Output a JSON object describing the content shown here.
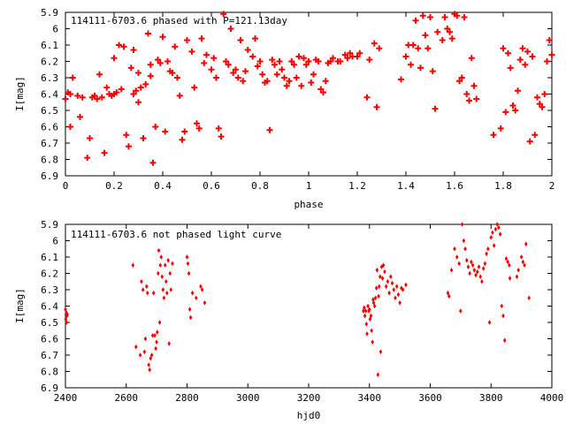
{
  "chart_data": [
    {
      "type": "scatter",
      "title": "114111-6703.6 phased with P=121.13day",
      "xlabel": "phase",
      "ylabel": "I[mag]",
      "xlim": [
        0,
        2
      ],
      "ylim": [
        5.9,
        6.9
      ],
      "y_inverted": true,
      "grid": false,
      "marker": "plus",
      "color": "#ff0000",
      "x_ticks": [
        "0",
        "0.2",
        "0.4",
        "0.6",
        "0.8",
        "1",
        "1.2",
        "1.4",
        "1.6",
        "1.8",
        "2"
      ],
      "y_ticks": [
        "5.9",
        "6",
        "6.1",
        "6.2",
        "6.3",
        "6.4",
        "6.5",
        "6.6",
        "6.7",
        "6.8",
        "6.9"
      ],
      "points": [
        [
          0.0,
          6.43
        ],
        [
          0.01,
          6.39
        ],
        [
          0.02,
          6.6
        ],
        [
          0.02,
          6.4
        ],
        [
          0.03,
          6.3
        ],
        [
          0.05,
          6.41
        ],
        [
          0.06,
          6.54
        ],
        [
          0.07,
          6.42
        ],
        [
          0.09,
          6.79
        ],
        [
          0.1,
          6.67
        ],
        [
          0.11,
          6.42
        ],
        [
          0.12,
          6.41
        ],
        [
          0.13,
          6.43
        ],
        [
          0.14,
          6.28
        ],
        [
          0.15,
          6.42
        ],
        [
          0.16,
          6.76
        ],
        [
          0.17,
          6.36
        ],
        [
          0.18,
          6.4
        ],
        [
          0.19,
          6.41
        ],
        [
          0.2,
          6.4
        ],
        [
          0.2,
          6.18
        ],
        [
          0.21,
          6.39
        ],
        [
          0.22,
          6.1
        ],
        [
          0.23,
          6.37
        ],
        [
          0.24,
          6.11
        ],
        [
          0.25,
          6.65
        ],
        [
          0.26,
          6.72
        ],
        [
          0.27,
          6.24
        ],
        [
          0.28,
          6.13
        ],
        [
          0.28,
          6.4
        ],
        [
          0.29,
          6.38
        ],
        [
          0.3,
          6.45
        ],
        [
          0.3,
          6.27
        ],
        [
          0.31,
          6.36
        ],
        [
          0.32,
          6.67
        ],
        [
          0.33,
          6.34
        ],
        [
          0.34,
          6.03
        ],
        [
          0.35,
          6.29
        ],
        [
          0.35,
          6.22
        ],
        [
          0.36,
          6.82
        ],
        [
          0.37,
          6.6
        ],
        [
          0.38,
          6.19
        ],
        [
          0.39,
          6.21
        ],
        [
          0.4,
          6.05
        ],
        [
          0.41,
          6.63
        ],
        [
          0.42,
          6.2
        ],
        [
          0.43,
          6.26
        ],
        [
          0.44,
          6.27
        ],
        [
          0.45,
          6.11
        ],
        [
          0.46,
          6.3
        ],
        [
          0.47,
          6.41
        ],
        [
          0.48,
          6.68
        ],
        [
          0.49,
          6.63
        ],
        [
          0.5,
          6.07
        ],
        [
          0.52,
          6.14
        ],
        [
          0.53,
          6.36
        ],
        [
          0.54,
          6.58
        ],
        [
          0.55,
          6.61
        ],
        [
          0.56,
          6.06
        ],
        [
          0.57,
          6.21
        ],
        [
          0.58,
          6.16
        ],
        [
          0.6,
          6.25
        ],
        [
          0.61,
          6.18
        ],
        [
          0.62,
          6.3
        ],
        [
          0.63,
          6.61
        ],
        [
          0.64,
          6.66
        ],
        [
          0.65,
          5.91
        ],
        [
          0.66,
          6.2
        ],
        [
          0.67,
          6.22
        ],
        [
          0.68,
          6.0
        ],
        [
          0.69,
          6.27
        ],
        [
          0.7,
          6.25
        ],
        [
          0.71,
          6.3
        ],
        [
          0.72,
          6.07
        ],
        [
          0.73,
          6.32
        ],
        [
          0.74,
          6.26
        ],
        [
          0.75,
          6.13
        ],
        [
          0.77,
          6.17
        ],
        [
          0.78,
          6.06
        ],
        [
          0.79,
          6.23
        ],
        [
          0.8,
          6.2
        ],
        [
          0.81,
          6.28
        ],
        [
          0.82,
          6.33
        ],
        [
          0.83,
          6.32
        ],
        [
          0.84,
          6.62
        ],
        [
          0.85,
          6.19
        ],
        [
          0.86,
          6.22
        ],
        [
          0.87,
          6.28
        ],
        [
          0.88,
          6.2
        ],
        [
          0.89,
          6.25
        ],
        [
          0.9,
          6.3
        ],
        [
          0.91,
          6.35
        ],
        [
          0.92,
          6.32
        ],
        [
          0.93,
          6.2
        ],
        [
          0.94,
          6.22
        ],
        [
          0.95,
          6.3
        ],
        [
          0.96,
          6.17
        ],
        [
          0.97,
          6.35
        ],
        [
          0.98,
          6.18
        ],
        [
          0.99,
          6.22
        ],
        [
          1.0,
          6.2
        ],
        [
          1.01,
          6.33
        ],
        [
          1.02,
          6.28
        ],
        [
          1.03,
          6.19
        ],
        [
          1.04,
          6.2
        ],
        [
          1.05,
          6.37
        ],
        [
          1.06,
          6.39
        ],
        [
          1.07,
          6.32
        ],
        [
          1.08,
          6.21
        ],
        [
          1.09,
          6.2
        ],
        [
          1.1,
          6.18
        ],
        [
          1.12,
          6.2
        ],
        [
          1.13,
          6.2
        ],
        [
          1.15,
          6.16
        ],
        [
          1.16,
          6.18
        ],
        [
          1.17,
          6.15
        ],
        [
          1.18,
          6.17
        ],
        [
          1.2,
          6.17
        ],
        [
          1.21,
          6.15
        ],
        [
          1.24,
          6.42
        ],
        [
          1.25,
          6.19
        ],
        [
          1.27,
          6.09
        ],
        [
          1.28,
          6.48
        ],
        [
          1.29,
          6.12
        ],
        [
          1.38,
          6.31
        ],
        [
          1.4,
          6.17
        ],
        [
          1.41,
          6.1
        ],
        [
          1.42,
          6.22
        ],
        [
          1.43,
          6.1
        ],
        [
          1.44,
          5.95
        ],
        [
          1.45,
          6.12
        ],
        [
          1.46,
          6.24
        ],
        [
          1.47,
          5.92
        ],
        [
          1.48,
          6.04
        ],
        [
          1.49,
          6.12
        ],
        [
          1.5,
          5.93
        ],
        [
          1.51,
          6.26
        ],
        [
          1.52,
          6.49
        ],
        [
          1.53,
          6.02
        ],
        [
          1.55,
          6.07
        ],
        [
          1.56,
          5.93
        ],
        [
          1.57,
          6.0
        ],
        [
          1.58,
          6.02
        ],
        [
          1.59,
          6.06
        ],
        [
          1.6,
          5.91
        ],
        [
          1.61,
          5.92
        ],
        [
          1.62,
          6.32
        ],
        [
          1.63,
          6.3
        ],
        [
          1.64,
          5.93
        ],
        [
          1.65,
          6.4
        ],
        [
          1.66,
          6.44
        ],
        [
          1.67,
          6.18
        ],
        [
          1.68,
          6.35
        ],
        [
          1.69,
          6.43
        ],
        [
          1.76,
          6.65
        ],
        [
          1.79,
          6.61
        ],
        [
          1.8,
          6.12
        ],
        [
          1.81,
          6.51
        ],
        [
          1.82,
          6.15
        ],
        [
          1.83,
          6.24
        ],
        [
          1.84,
          6.47
        ],
        [
          1.85,
          6.5
        ],
        [
          1.86,
          6.38
        ],
        [
          1.87,
          6.19
        ],
        [
          1.88,
          6.12
        ],
        [
          1.89,
          6.22
        ],
        [
          1.9,
          6.14
        ],
        [
          1.91,
          6.69
        ],
        [
          1.92,
          6.17
        ],
        [
          1.93,
          6.65
        ],
        [
          1.94,
          6.42
        ],
        [
          1.95,
          6.46
        ],
        [
          1.96,
          6.48
        ],
        [
          1.97,
          6.4
        ],
        [
          1.98,
          6.2
        ],
        [
          1.99,
          6.07
        ],
        [
          2.0,
          6.16
        ]
      ]
    },
    {
      "type": "scatter",
      "title": "114111-6703.6 not phased light curve",
      "xlabel": "hjd0",
      "ylabel": "I[mag]",
      "xlim": [
        2400,
        4000
      ],
      "ylim": [
        5.9,
        6.9
      ],
      "y_inverted": true,
      "grid": false,
      "marker": "diamond",
      "color": "#ff0000",
      "x_ticks": [
        "2400",
        "2600",
        "2800",
        "3000",
        "3200",
        "3400",
        "3600",
        "3800",
        "4000"
      ],
      "y_ticks": [
        "5.9",
        "6",
        "6.1",
        "6.2",
        "6.3",
        "6.4",
        "6.5",
        "6.6",
        "6.7",
        "6.8",
        "6.9"
      ],
      "points": [
        [
          2400,
          6.42
        ],
        [
          2401,
          6.48
        ],
        [
          2403,
          6.44
        ],
        [
          2404,
          6.5
        ],
        [
          2405,
          6.46
        ],
        [
          2406,
          6.45
        ],
        [
          2622,
          6.15
        ],
        [
          2632,
          6.65
        ],
        [
          2646,
          6.7
        ],
        [
          2650,
          6.25
        ],
        [
          2655,
          6.3
        ],
        [
          2660,
          6.68
        ],
        [
          2663,
          6.6
        ],
        [
          2667,
          6.28
        ],
        [
          2670,
          6.32
        ],
        [
          2674,
          6.76
        ],
        [
          2677,
          6.79
        ],
        [
          2680,
          6.72
        ],
        [
          2684,
          6.7
        ],
        [
          2687,
          6.58
        ],
        [
          2690,
          6.32
        ],
        [
          2694,
          6.58
        ],
        [
          2697,
          6.66
        ],
        [
          2700,
          6.62
        ],
        [
          2702,
          6.56
        ],
        [
          2705,
          6.2
        ],
        [
          2707,
          6.06
        ],
        [
          2710,
          6.5
        ],
        [
          2712,
          6.15
        ],
        [
          2715,
          6.1
        ],
        [
          2718,
          6.22
        ],
        [
          2721,
          6.3
        ],
        [
          2724,
          6.35
        ],
        [
          2728,
          6.15
        ],
        [
          2731,
          6.25
        ],
        [
          2734,
          6.32
        ],
        [
          2738,
          6.12
        ],
        [
          2741,
          6.63
        ],
        [
          2744,
          6.2
        ],
        [
          2747,
          6.3
        ],
        [
          2752,
          6.14
        ],
        [
          2800,
          6.1
        ],
        [
          2803,
          6.14
        ],
        [
          2806,
          6.2
        ],
        [
          2809,
          6.42
        ],
        [
          2812,
          6.47
        ],
        [
          2818,
          6.32
        ],
        [
          2830,
          6.35
        ],
        [
          2845,
          6.28
        ],
        [
          2850,
          6.3
        ],
        [
          2858,
          6.38
        ],
        [
          3380,
          6.43
        ],
        [
          3383,
          6.41
        ],
        [
          3385,
          6.46
        ],
        [
          3388,
          6.43
        ],
        [
          3390,
          6.51
        ],
        [
          3392,
          6.57
        ],
        [
          3395,
          6.4
        ],
        [
          3398,
          6.43
        ],
        [
          3400,
          6.42
        ],
        [
          3402,
          6.48
        ],
        [
          3405,
          6.46
        ],
        [
          3407,
          6.55
        ],
        [
          3410,
          6.62
        ],
        [
          3412,
          6.36
        ],
        [
          3414,
          6.38
        ],
        [
          3417,
          6.4
        ],
        [
          3420,
          6.35
        ],
        [
          3423,
          6.29
        ],
        [
          3425,
          6.18
        ],
        [
          3428,
          6.82
        ],
        [
          3430,
          6.34
        ],
        [
          3432,
          6.28
        ],
        [
          3435,
          6.22
        ],
        [
          3437,
          6.68
        ],
        [
          3440,
          6.16
        ],
        [
          3443,
          6.23
        ],
        [
          3446,
          6.15
        ],
        [
          3450,
          6.19
        ],
        [
          3455,
          6.28
        ],
        [
          3460,
          6.25
        ],
        [
          3465,
          6.32
        ],
        [
          3470,
          6.22
        ],
        [
          3475,
          6.26
        ],
        [
          3480,
          6.3
        ],
        [
          3485,
          6.35
        ],
        [
          3490,
          6.28
        ],
        [
          3495,
          6.33
        ],
        [
          3500,
          6.38
        ],
        [
          3505,
          6.29
        ],
        [
          3510,
          6.3
        ],
        [
          3520,
          6.27
        ],
        [
          3658,
          6.32
        ],
        [
          3662,
          6.34
        ],
        [
          3670,
          6.18
        ],
        [
          3680,
          6.05
        ],
        [
          3688,
          6.1
        ],
        [
          3695,
          6.14
        ],
        [
          3700,
          6.43
        ],
        [
          3705,
          5.9
        ],
        [
          3710,
          6.0
        ],
        [
          3715,
          6.05
        ],
        [
          3720,
          6.12
        ],
        [
          3725,
          6.16
        ],
        [
          3730,
          6.2
        ],
        [
          3735,
          6.13
        ],
        [
          3740,
          6.15
        ],
        [
          3745,
          6.18
        ],
        [
          3750,
          6.21
        ],
        [
          3755,
          6.19
        ],
        [
          3760,
          6.16
        ],
        [
          3765,
          6.22
        ],
        [
          3770,
          6.25
        ],
        [
          3775,
          6.17
        ],
        [
          3780,
          6.14
        ],
        [
          3785,
          6.08
        ],
        [
          3790,
          6.05
        ],
        [
          3795,
          6.5
        ],
        [
          3800,
          5.98
        ],
        [
          3805,
          5.95
        ],
        [
          3810,
          6.03
        ],
        [
          3815,
          5.93
        ],
        [
          3820,
          5.9
        ],
        [
          3825,
          5.92
        ],
        [
          3830,
          5.96
        ],
        [
          3835,
          6.4
        ],
        [
          3840,
          6.46
        ],
        [
          3845,
          6.61
        ],
        [
          3850,
          6.11
        ],
        [
          3855,
          6.13
        ],
        [
          3860,
          6.15
        ],
        [
          3862,
          6.23
        ],
        [
          3885,
          6.22
        ],
        [
          3890,
          6.18
        ],
        [
          3900,
          6.1
        ],
        [
          3905,
          6.13
        ],
        [
          3910,
          6.15
        ],
        [
          3915,
          6.02
        ],
        [
          3925,
          6.35
        ]
      ]
    }
  ]
}
